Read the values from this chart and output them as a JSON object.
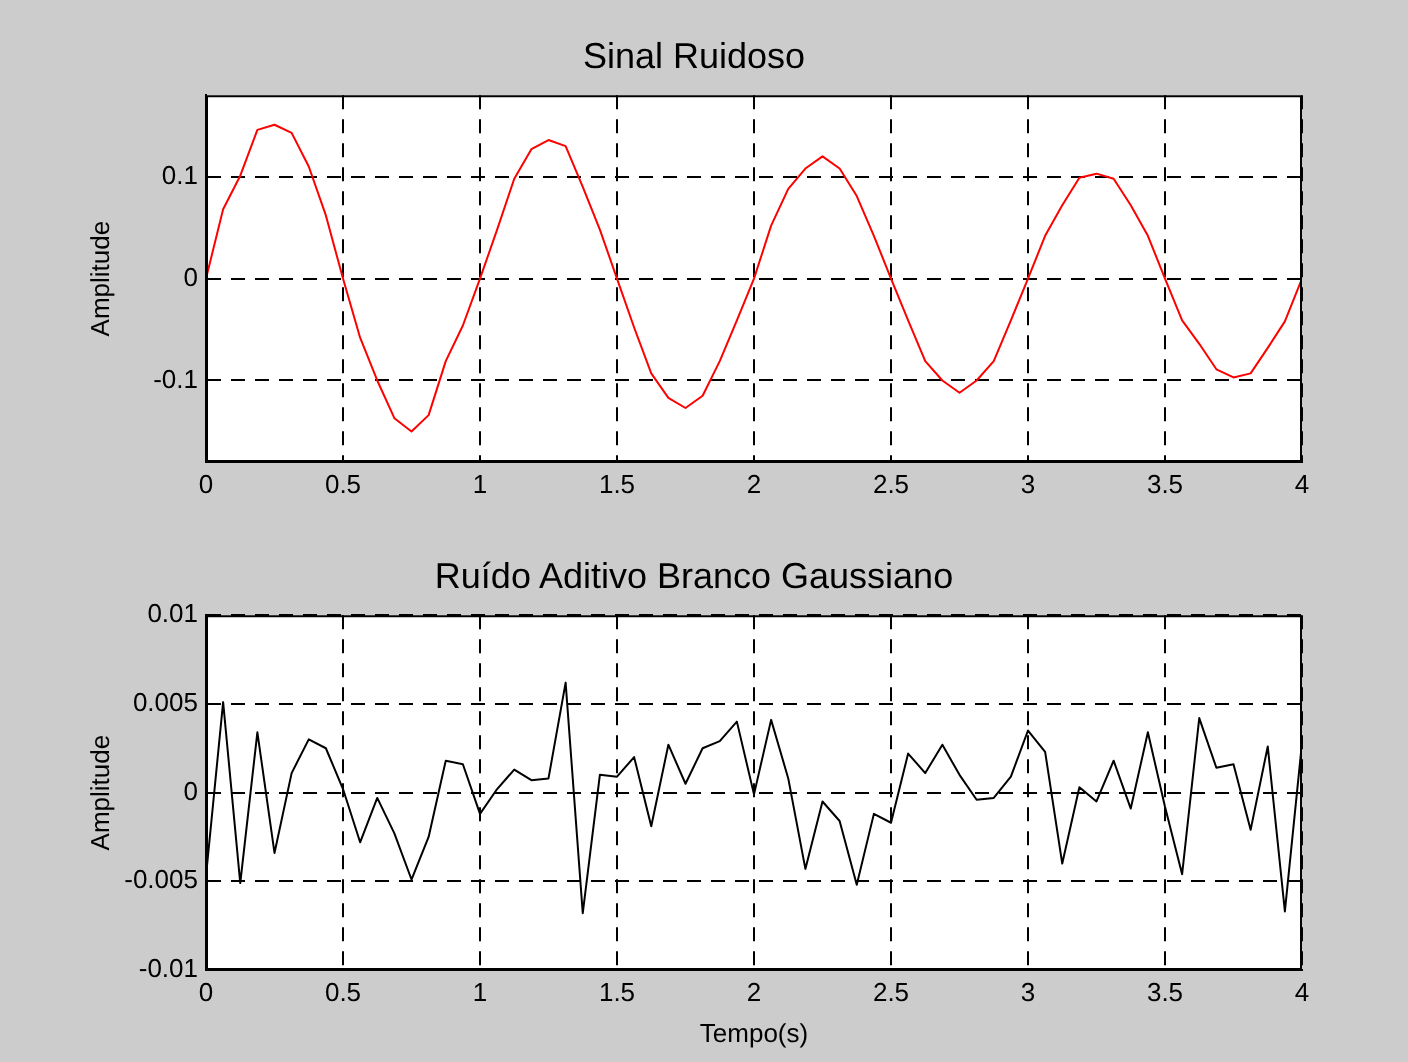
{
  "chart_data": [
    {
      "type": "line",
      "title": "Sinal Ruidoso",
      "ylabel": "Amplitude",
      "x": [
        0,
        0.0625,
        0.125,
        0.1875,
        0.25,
        0.3125,
        0.375,
        0.4375,
        0.5,
        0.5625,
        0.625,
        0.6875,
        0.75,
        0.8125,
        0.875,
        0.9375,
        1,
        1.0625,
        1.125,
        1.1875,
        1.25,
        1.3125,
        1.375,
        1.4375,
        1.5,
        1.5625,
        1.625,
        1.6875,
        1.75,
        1.8125,
        1.875,
        1.9375,
        2,
        2.0625,
        2.125,
        2.1875,
        2.25,
        2.3125,
        2.375,
        2.4375,
        2.5,
        2.5625,
        2.625,
        2.6875,
        2.75,
        2.8125,
        2.875,
        2.9375,
        3,
        3.0625,
        3.125,
        3.1875,
        3.25,
        3.3125,
        3.375,
        3.4375,
        3.5,
        3.5625,
        3.625,
        3.6875,
        3.75,
        3.8125,
        3.875,
        3.9375,
        4
      ],
      "series": [
        {
          "color": "#ff0000",
          "values": [
            0,
            0.068,
            0.101,
            0.146,
            0.151,
            0.143,
            0.11,
            0.062,
            0,
            -0.058,
            -0.1,
            -0.137,
            -0.15,
            -0.134,
            -0.081,
            -0.046,
            0,
            0.048,
            0.098,
            0.127,
            0.136,
            0.13,
            0.09,
            0.048,
            0,
            -0.048,
            -0.093,
            -0.117,
            -0.127,
            -0.115,
            -0.081,
            -0.041,
            0,
            0.052,
            0.088,
            0.108,
            0.12,
            0.108,
            0.081,
            0.042,
            0,
            -0.041,
            -0.081,
            -0.1,
            -0.112,
            -0.1,
            -0.081,
            -0.041,
            0,
            0.042,
            0.072,
            0.099,
            0.103,
            0.098,
            0.072,
            0.042,
            0,
            -0.041,
            -0.064,
            -0.089,
            -0.097,
            -0.093,
            -0.068,
            -0.042,
            0
          ]
        }
      ],
      "xlim": [
        0,
        4
      ],
      "xticks": [
        0,
        0.5,
        1,
        1.5,
        2,
        2.5,
        3,
        3.5,
        4
      ],
      "ylim": [
        -0.18,
        0.18
      ],
      "yticks": [
        -0.1,
        0,
        0.1
      ],
      "grid": true,
      "marker": "none"
    },
    {
      "type": "line",
      "title": "Ruído Aditivo Branco Gaussiano",
      "xlabel": "Tempo(s)",
      "ylabel": "Amplitude",
      "x": [
        0,
        0.0625,
        0.125,
        0.1875,
        0.25,
        0.3125,
        0.375,
        0.4375,
        0.5,
        0.5625,
        0.625,
        0.6875,
        0.75,
        0.8125,
        0.875,
        0.9375,
        1,
        1.0625,
        1.125,
        1.1875,
        1.25,
        1.3125,
        1.375,
        1.4375,
        1.5,
        1.5625,
        1.625,
        1.6875,
        1.75,
        1.8125,
        1.875,
        1.9375,
        2,
        2.0625,
        2.125,
        2.1875,
        2.25,
        2.3125,
        2.375,
        2.4375,
        2.5,
        2.5625,
        2.625,
        2.6875,
        2.75,
        2.8125,
        2.875,
        2.9375,
        3,
        3.0625,
        3.125,
        3.1875,
        3.25,
        3.3125,
        3.375,
        3.4375,
        3.5,
        3.5625,
        3.625,
        3.6875,
        3.75,
        3.8125,
        3.875,
        3.9375,
        4
      ],
      "series": [
        {
          "color": "#000000",
          "values": [
            -0.0047,
            0.0051,
            -0.0051,
            0.0034,
            -0.0034,
            0.0011,
            0.003,
            0.0025,
            0.0002,
            -0.0028,
            -0.0003,
            -0.0023,
            -0.0049,
            -0.0025,
            0.0018,
            0.0016,
            -0.0012,
            0.0002,
            0.0013,
            0.0007,
            0.0008,
            0.0062,
            -0.0068,
            0.001,
            0.0009,
            0.002,
            -0.0019,
            0.0027,
            0.0005,
            0.0025,
            0.0029,
            0.004,
            -0.0001,
            0.0041,
            0.0008,
            -0.0043,
            -0.0005,
            -0.0016,
            -0.0052,
            -0.0012,
            -0.0017,
            0.0022,
            0.0011,
            0.0027,
            0.001,
            -0.0004,
            -0.0003,
            0.0009,
            0.0035,
            0.0023,
            -0.004,
            0.0003,
            -0.0005,
            0.0018,
            -0.0009,
            0.0034,
            -0.0008,
            -0.0046,
            0.0042,
            0.0014,
            0.0016,
            -0.0021,
            0.0026,
            -0.0067,
            0.0028
          ]
        }
      ],
      "xlim": [
        0,
        4
      ],
      "xticks": [
        0,
        0.5,
        1,
        1.5,
        2,
        2.5,
        3,
        3.5,
        4
      ],
      "ylim": [
        -0.01,
        0.01
      ],
      "yticks": [
        -0.01,
        -0.005,
        0,
        0.005,
        0.01
      ],
      "grid": true,
      "marker": "none"
    }
  ]
}
